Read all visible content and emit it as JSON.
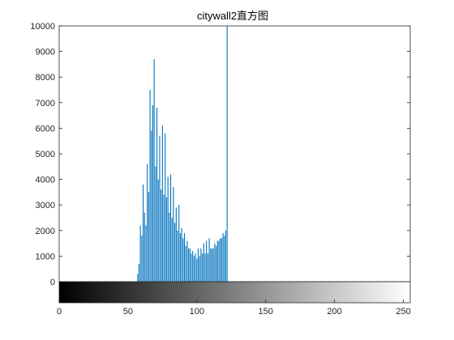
{
  "chart_data": {
    "type": "bar",
    "title": "citywall2直方图",
    "xlabel": "",
    "ylabel": "",
    "xlim": [
      0,
      255
    ],
    "ylim": [
      0,
      10000
    ],
    "xticks": [
      0,
      50,
      100,
      150,
      200,
      250
    ],
    "yticks": [
      0,
      1000,
      2000,
      3000,
      4000,
      5000,
      6000,
      7000,
      8000,
      9000,
      10000
    ],
    "xtick_labels": [
      "0",
      "50",
      "100",
      "150",
      "200",
      "250"
    ],
    "ytick_labels": [
      "0",
      "1000",
      "2000",
      "3000",
      "4000",
      "5000",
      "6000",
      "7000",
      "8000",
      "9000",
      "10000"
    ],
    "grid": false,
    "colorbar": "grayscale 0-255 below x axis",
    "bar_color": "#0072bd",
    "series": [
      {
        "x": [
          57,
          58,
          59,
          60,
          61,
          62,
          63,
          64,
          65,
          66,
          67,
          68,
          69,
          70,
          71,
          72,
          73,
          74,
          75,
          76,
          77,
          78,
          79,
          80,
          81,
          82,
          83,
          84,
          85,
          86,
          87,
          88,
          89,
          90,
          91,
          92,
          93,
          94,
          95,
          96,
          97,
          98,
          99,
          100,
          101,
          102,
          103,
          104,
          105,
          106,
          107,
          108,
          109,
          110,
          111,
          112,
          113,
          114,
          115,
          116,
          117,
          118,
          119,
          120,
          121,
          122
        ],
        "values": [
          300,
          700,
          2200,
          1800,
          3800,
          2700,
          2200,
          4600,
          3500,
          7500,
          5900,
          6900,
          8700,
          4500,
          6800,
          4000,
          5700,
          3600,
          6100,
          3400,
          5800,
          3300,
          4100,
          2700,
          4200,
          2500,
          3700,
          2300,
          2900,
          2000,
          3000,
          1900,
          2100,
          1700,
          1900,
          1400,
          1600,
          1300,
          1300,
          1100,
          1200,
          1000,
          1100,
          900,
          1300,
          1000,
          1300,
          1100,
          1500,
          1100,
          1600,
          1100,
          1700,
          1300,
          1300,
          1300,
          1500,
          1400,
          1600,
          1600,
          1700,
          1700,
          1900,
          1800,
          2000,
          10000
        ]
      }
    ]
  }
}
